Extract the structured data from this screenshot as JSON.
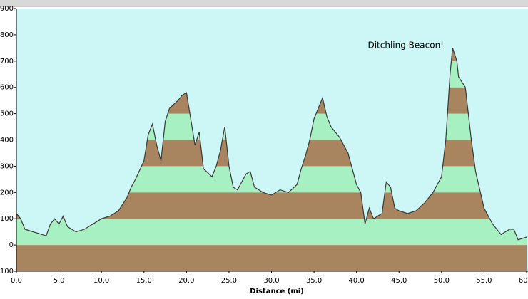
{
  "chart_data": {
    "type": "area",
    "xlabel": "Distance   (mi)",
    "annotation": "Ditchling Beacon!",
    "x": [
      0,
      0.5,
      1,
      2,
      3,
      3.5,
      4,
      4.5,
      5,
      5.5,
      6,
      7,
      8,
      9,
      10,
      11,
      12,
      13,
      13.5,
      14,
      15,
      15.5,
      16,
      16.5,
      17,
      17.5,
      18,
      19,
      19.5,
      20,
      20.5,
      21,
      21.5,
      22,
      23,
      23.5,
      24,
      24.5,
      25,
      25.5,
      26,
      27,
      27.5,
      28,
      29,
      30,
      31,
      32,
      33,
      33.5,
      34,
      34.5,
      35,
      35.5,
      36,
      36.5,
      37,
      38,
      39,
      40,
      40.5,
      41,
      41.5,
      42,
      43,
      43.5,
      44,
      44.5,
      45,
      46,
      47,
      48,
      49,
      50,
      50.5,
      51,
      51.3,
      51.8,
      52,
      52.8,
      53.5,
      54,
      55,
      56,
      57,
      58,
      58.5,
      59,
      60
    ],
    "values": [
      120,
      100,
      60,
      50,
      40,
      35,
      80,
      100,
      80,
      110,
      70,
      50,
      60,
      80,
      100,
      110,
      130,
      180,
      220,
      250,
      320,
      420,
      460,
      380,
      320,
      470,
      520,
      550,
      570,
      580,
      480,
      380,
      430,
      290,
      260,
      300,
      360,
      450,
      300,
      220,
      210,
      270,
      280,
      220,
      200,
      190,
      210,
      200,
      230,
      290,
      340,
      400,
      480,
      520,
      560,
      490,
      450,
      410,
      350,
      230,
      200,
      80,
      140,
      100,
      120,
      240,
      220,
      140,
      130,
      120,
      130,
      160,
      200,
      260,
      400,
      650,
      750,
      700,
      640,
      600,
      400,
      280,
      140,
      80,
      40,
      60,
      60,
      20,
      30
    ],
    "xlim": [
      0,
      60
    ],
    "ylim": [
      -100,
      900
    ],
    "xticks": [
      {
        "value": 0,
        "label": "0.0"
      },
      {
        "value": 5,
        "label": "5.0"
      },
      {
        "value": 10,
        "label": "10.0"
      },
      {
        "value": 15,
        "label": "15.0"
      },
      {
        "value": 20,
        "label": "20.0"
      },
      {
        "value": 25,
        "label": "25.0"
      },
      {
        "value": 30,
        "label": "30.0"
      },
      {
        "value": 35,
        "label": "35.0"
      },
      {
        "value": 40,
        "label": "40.0"
      },
      {
        "value": 45,
        "label": "45.0"
      },
      {
        "value": 50,
        "label": "50.0"
      },
      {
        "value": 55,
        "label": "55.0"
      },
      {
        "value": 60,
        "label": "60.0"
      }
    ],
    "yticks": [
      -100,
      0,
      100,
      200,
      300,
      400,
      500,
      600,
      700,
      800,
      900
    ],
    "band_colors": [
      "#a8855f",
      "#a7f0c2"
    ],
    "background": "#cdf6f6",
    "line_color": "#3a3a3a"
  }
}
